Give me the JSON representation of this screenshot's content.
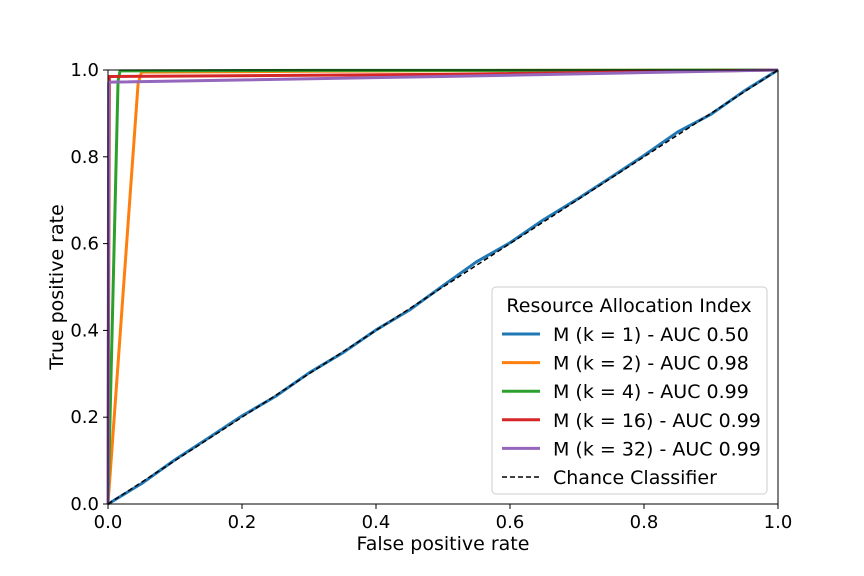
{
  "chart_data": {
    "type": "line",
    "title": "",
    "xlabel": "False positive rate",
    "ylabel": "True positive rate",
    "xlim": [
      0.0,
      1.0
    ],
    "ylim": [
      0.0,
      1.0
    ],
    "xticks": [
      "0.0",
      "0.2",
      "0.4",
      "0.6",
      "0.8",
      "1.0"
    ],
    "yticks": [
      "0.0",
      "0.2",
      "0.4",
      "0.6",
      "0.8",
      "1.0"
    ],
    "grid": false,
    "legend": {
      "title": "Resource Allocation Index",
      "position": "lower-right"
    },
    "series": [
      {
        "name": "M (k = 1) - AUC 0.50",
        "color": "#1f77b4",
        "style": "solid",
        "x": [
          0.0,
          0.05,
          0.1,
          0.15,
          0.2,
          0.25,
          0.3,
          0.35,
          0.4,
          0.45,
          0.5,
          0.55,
          0.6,
          0.65,
          0.7,
          0.75,
          0.8,
          0.85,
          0.9,
          0.95,
          1.0
        ],
        "y": [
          0.0,
          0.047,
          0.102,
          0.152,
          0.203,
          0.248,
          0.302,
          0.348,
          0.401,
          0.447,
          0.503,
          0.558,
          0.602,
          0.655,
          0.702,
          0.752,
          0.803,
          0.857,
          0.898,
          0.952,
          1.0
        ]
      },
      {
        "name": "M (k = 2) - AUC 0.98",
        "color": "#ff7f0e",
        "style": "solid",
        "x": [
          0.0,
          0.045,
          0.05,
          0.3,
          0.6,
          1.0
        ],
        "y": [
          0.0,
          0.97,
          0.995,
          0.997,
          0.999,
          1.0
        ]
      },
      {
        "name": "M (k = 4) - AUC 0.99",
        "color": "#2ca02c",
        "style": "solid",
        "x": [
          0.0,
          0.015,
          0.018,
          0.3,
          0.6,
          1.0
        ],
        "y": [
          0.0,
          0.975,
          0.998,
          0.999,
          0.999,
          1.0
        ]
      },
      {
        "name": "M (k = 16) - AUC 0.99",
        "color": "#d62728",
        "style": "solid",
        "x": [
          0.0,
          0.002,
          0.003,
          0.5,
          1.0
        ],
        "y": [
          0.0,
          0.985,
          0.985,
          0.99,
          1.0
        ]
      },
      {
        "name": "M (k = 32) - AUC 0.99",
        "color": "#9467bd",
        "style": "solid",
        "x": [
          0.0,
          0.001,
          0.002,
          0.5,
          1.0
        ],
        "y": [
          0.0,
          0.97,
          0.972,
          0.985,
          1.0
        ]
      },
      {
        "name": "Chance Classifier",
        "color": "#000000",
        "style": "dashed",
        "x": [
          0.0,
          1.0
        ],
        "y": [
          0.0,
          1.0
        ]
      }
    ]
  }
}
